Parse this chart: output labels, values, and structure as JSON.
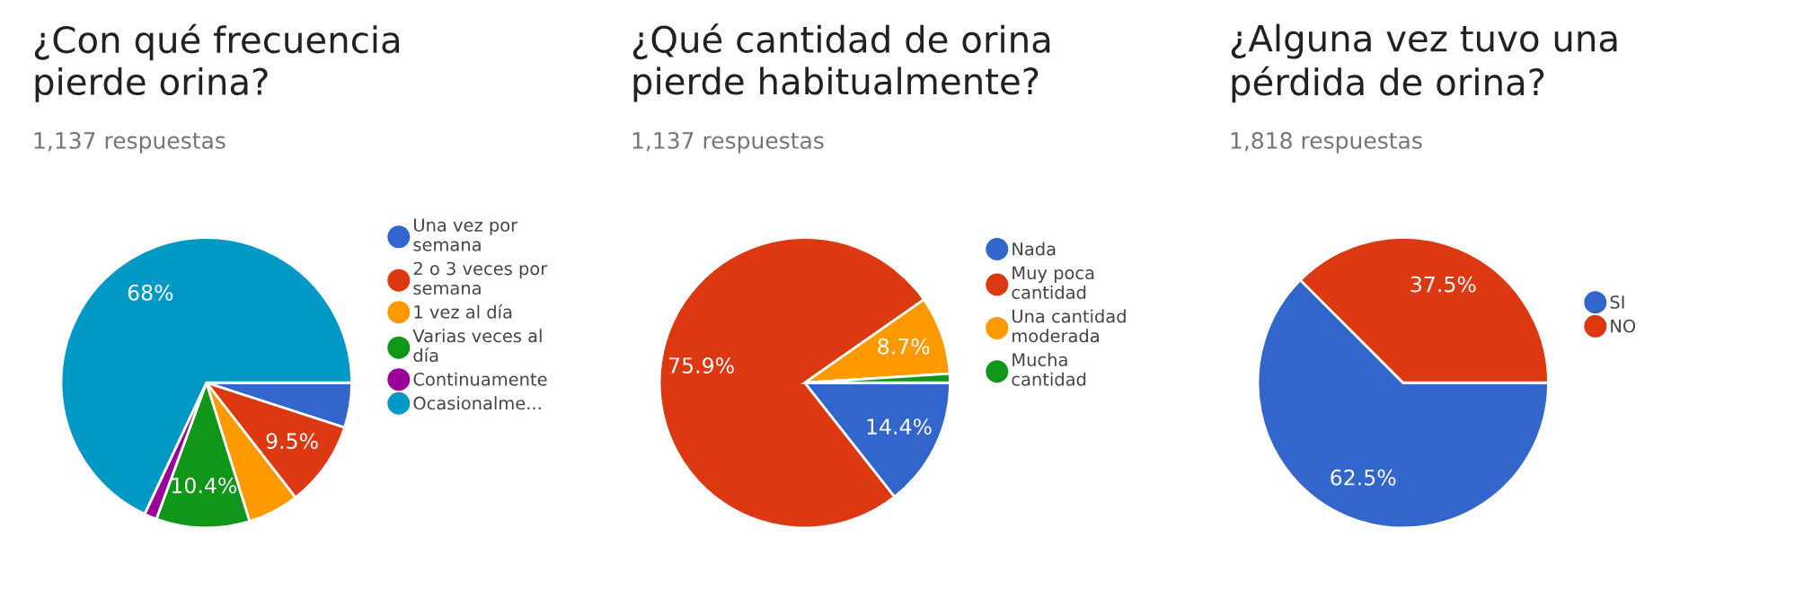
{
  "chart_data": [
    {
      "type": "pie",
      "title": "¿Con qué frecuencia\npierde orina?",
      "subtitle": "1,137 respuestas",
      "categories": [
        "Una vez por\nsemana",
        "2 o 3 veces por\nsemana",
        "1 vez al día",
        "Varias veces al\ndía",
        "Continuamente",
        "Ocasionalme..."
      ],
      "values": [
        5.0,
        9.5,
        5.7,
        10.4,
        1.4,
        68
      ],
      "value_labels": [
        null,
        "9.5%",
        null,
        "10.4%",
        null,
        "68%"
      ],
      "colors": [
        "#3366cc",
        "#dc3912",
        "#ff9900",
        "#109618",
        "#990099",
        "#0099c6"
      ],
      "legend": "right"
    },
    {
      "type": "pie",
      "title": "¿Qué cantidad de orina\npierde habitualmente?",
      "subtitle": "1,137 respuestas",
      "categories": [
        "Nada",
        "Muy poca\ncantidad",
        "Una cantidad\nmoderada",
        "Mucha\ncantidad"
      ],
      "values": [
        14.4,
        75.9,
        8.7,
        1.0
      ],
      "value_labels": [
        "14.4%",
        "75.9%",
        "8.7%",
        null
      ],
      "colors": [
        "#3366cc",
        "#dc3912",
        "#ff9900",
        "#109618"
      ],
      "legend": "right"
    },
    {
      "type": "pie",
      "title": "¿Alguna vez tuvo una\npérdida de orina?",
      "subtitle": "1,818 respuestas",
      "categories": [
        "SI",
        "NO"
      ],
      "values": [
        62.5,
        37.5
      ],
      "value_labels": [
        "62.5%",
        "37.5%"
      ],
      "colors": [
        "#3366cc",
        "#dc3912"
      ],
      "legend": "right"
    }
  ]
}
